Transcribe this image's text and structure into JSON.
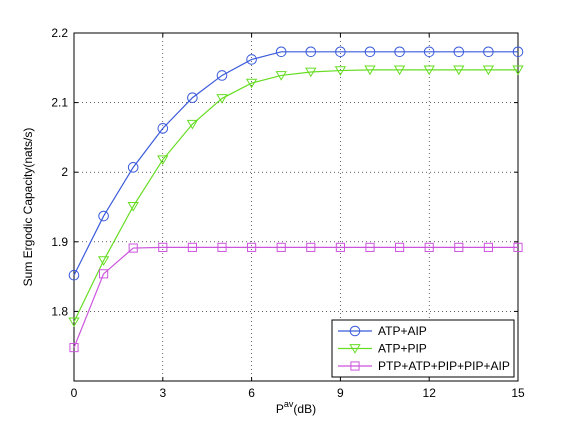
{
  "chart_data": {
    "type": "line",
    "title": "",
    "xlabel_main": "P",
    "xlabel_sup": "av",
    "xlabel_unit": "(dB)",
    "ylabel": "Sum Ergodic Capacity(nats/s)",
    "xlim": [
      0,
      15
    ],
    "ylim": [
      1.7,
      2.2
    ],
    "xticks": [
      0,
      3,
      6,
      9,
      12,
      15
    ],
    "yticks": [
      1.8,
      1.9,
      2.0,
      2.1,
      2.2
    ],
    "xtick_labels": [
      "0",
      "3",
      "6",
      "9",
      "12",
      "15"
    ],
    "ytick_labels": [
      "1.8",
      "1.9",
      "2",
      "2.1",
      "2.2"
    ],
    "grid": true,
    "grid_style": "dotted",
    "legend_position": "bottom-right",
    "x": [
      0,
      1,
      2,
      3,
      4,
      5,
      6,
      7,
      8,
      9,
      10,
      11,
      12,
      13,
      14,
      15
    ],
    "series": [
      {
        "name": "ATP+AIP",
        "color": "#3b5bdb",
        "marker": "circle",
        "values": [
          1.852,
          1.937,
          2.007,
          2.063,
          2.107,
          2.139,
          2.162,
          2.173,
          2.173,
          2.173,
          2.173,
          2.173,
          2.173,
          2.173,
          2.173,
          2.173
        ]
      },
      {
        "name": "ATP+PIP",
        "color": "#66dd22",
        "marker": "triangle-down",
        "values": [
          1.785,
          1.873,
          1.951,
          2.018,
          2.069,
          2.106,
          2.128,
          2.139,
          2.144,
          2.146,
          2.147,
          2.147,
          2.147,
          2.147,
          2.147,
          2.147
        ]
      },
      {
        "name": "PTP+ATP+PIP+PIP+AIP",
        "color": "#cc55dd",
        "marker": "square",
        "values": [
          1.748,
          1.854,
          1.891,
          1.892,
          1.892,
          1.892,
          1.892,
          1.892,
          1.892,
          1.892,
          1.892,
          1.892,
          1.892,
          1.892,
          1.892,
          1.892
        ]
      }
    ]
  }
}
